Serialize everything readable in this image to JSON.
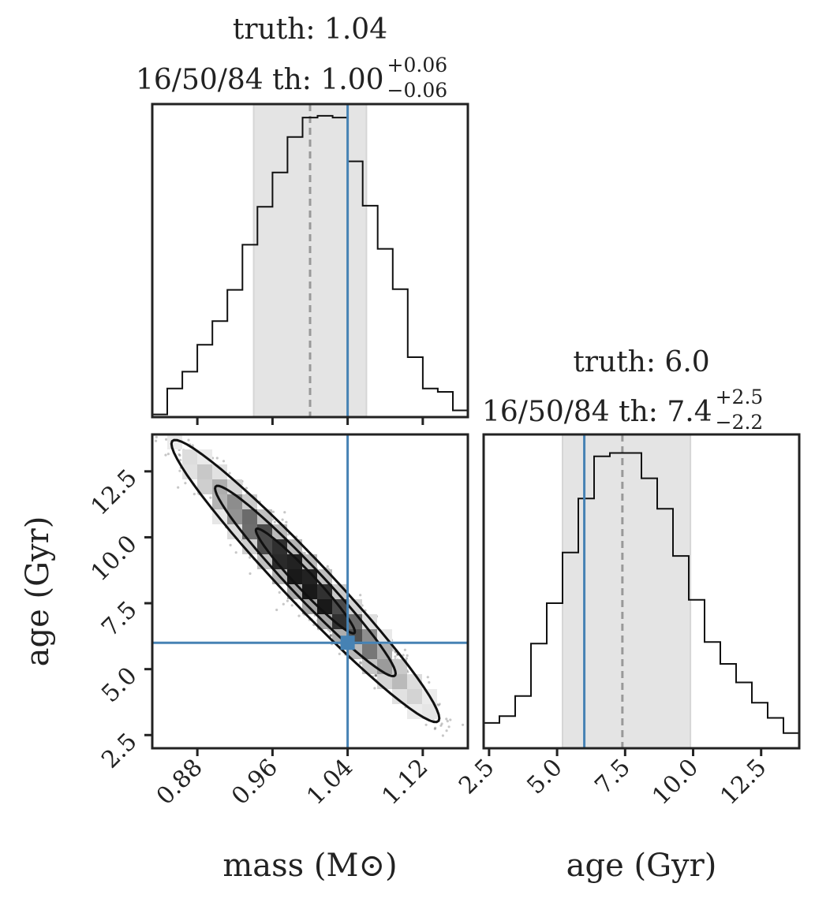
{
  "chart_data": [
    {
      "type": "histogram",
      "panel": "mass-marginal",
      "title_truth": "truth: 1.04",
      "title_quantiles": "16/50/84 th: 1.00",
      "quantile_plus": "+0.06",
      "quantile_minus": "−0.06",
      "truth": 1.04,
      "median": 1.0,
      "q16": 0.94,
      "q84": 1.06,
      "xlim": [
        0.832,
        1.168
      ],
      "bin_edges": [
        0.832,
        0.848,
        0.864,
        0.88,
        0.896,
        0.912,
        0.928,
        0.944,
        0.96,
        0.976,
        0.992,
        1.008,
        1.024,
        1.04,
        1.056,
        1.072,
        1.088,
        1.104,
        1.12,
        1.136,
        1.152,
        1.168
      ],
      "counts": [
        0.008,
        0.085,
        0.135,
        0.215,
        0.285,
        0.378,
        0.512,
        0.625,
        0.727,
        0.832,
        0.89,
        0.895,
        0.89,
        0.76,
        0.628,
        0.5,
        0.38,
        0.178,
        0.085,
        0.075,
        0.02
      ]
    },
    {
      "type": "histogram",
      "panel": "age-marginal",
      "title_truth": "truth: 6.0",
      "title_quantiles": "16/50/84 th: 7.4",
      "quantile_plus": "+2.5",
      "quantile_minus": "−2.2",
      "xlabel": "age (Gyr)",
      "truth": 6.0,
      "median": 7.4,
      "q16": 5.2,
      "q84": 9.9,
      "xlim": [
        2.3,
        13.9
      ],
      "xticks": [
        2.5,
        5.0,
        7.5,
        10.0,
        12.5
      ],
      "xticklabels": [
        "2.5",
        "5.0",
        "7.5",
        "10.0",
        "12.5"
      ],
      "bin_edges": [
        2.3,
        2.88,
        3.46,
        4.04,
        4.62,
        5.2,
        5.78,
        6.36,
        6.94,
        7.52,
        8.1,
        8.68,
        9.26,
        9.84,
        10.42,
        11.0,
        11.58,
        12.16,
        12.74,
        13.32,
        13.9
      ],
      "counts": [
        0.075,
        0.095,
        0.155,
        0.31,
        0.43,
        0.58,
        0.74,
        0.865,
        0.875,
        0.875,
        0.8,
        0.71,
        0.57,
        0.44,
        0.315,
        0.25,
        0.195,
        0.135,
        0.09,
        0.045
      ]
    },
    {
      "type": "scatter",
      "panel": "mass-age-joint",
      "xlabel": "mass (M⊙)",
      "ylabel": "age (Gyr)",
      "xlim": [
        0.832,
        1.168
      ],
      "ylim": [
        2.0,
        13.9
      ],
      "xticks": [
        0.88,
        0.96,
        1.04,
        1.12
      ],
      "xticklabels": [
        "0.88",
        "0.96",
        "1.04",
        "1.12"
      ],
      "yticks": [
        2.5,
        5.0,
        7.5,
        10.0,
        12.5
      ],
      "yticklabels": [
        "2.5",
        "5.0",
        "7.5",
        "10.0",
        "12.5"
      ],
      "truth": [
        1.04,
        6.0
      ],
      "relation": {
        "age_at_mass_0_84": 14.0,
        "slope_per_unit_mass": -36.5
      },
      "contours": [
        "1-sigma",
        "2-sigma",
        "3-sigma"
      ]
    }
  ],
  "colors": {
    "truth": "#4682b4",
    "axes": "#222222",
    "hist": "#111111",
    "band": "#e4e4e4",
    "median": "#999999"
  }
}
